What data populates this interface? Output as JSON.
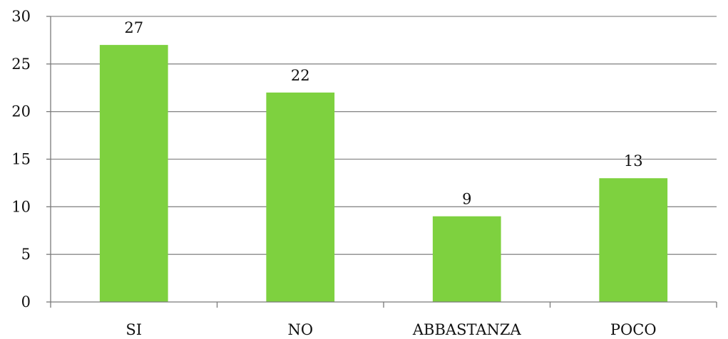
{
  "chart_data": {
    "type": "bar",
    "categories": [
      "SI",
      "NO",
      "ABBASTANZA",
      "POCO"
    ],
    "values": [
      27,
      22,
      9,
      13
    ],
    "data_labels": [
      "27",
      "22",
      "9",
      "13"
    ],
    "title": "",
    "xlabel": "",
    "ylabel": "",
    "ylim": [
      0,
      30
    ],
    "yticks": [
      "0",
      "5",
      "10",
      "15",
      "20",
      "25",
      "30"
    ],
    "grid": true,
    "legend": "none",
    "bar_color": "#7ED13F"
  }
}
